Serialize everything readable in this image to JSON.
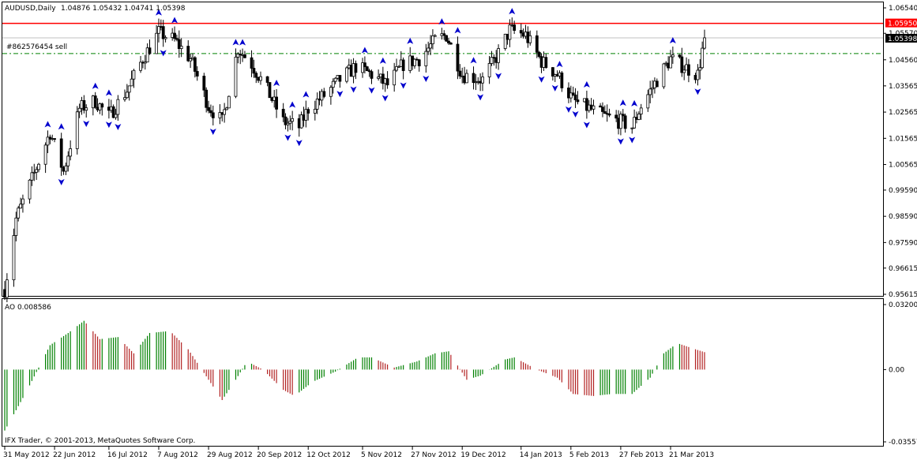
{
  "main_chart": {
    "symbol_title": "AUDUSD,Daily",
    "ohlc_text": "1.04876 1.05432 1.04741 1.05398",
    "order_label": "#862576454 sell",
    "price_axis_ticks": [
      "1.06540",
      "1.05570",
      "1.04560",
      "1.03565",
      "1.02565",
      "1.01565",
      "1.00565",
      "0.99590",
      "0.98590",
      "0.97590",
      "0.96615",
      "0.95615"
    ],
    "resistance_level": "1.05950",
    "current_price": "1.05398",
    "order_level": "1.04800",
    "colors": {
      "resistance": "#ff0000",
      "order_line": "#008000",
      "fractal": "#0000cd",
      "candle": "#000000",
      "price_tag_bg": "#000000",
      "resistance_tag_bg": "#ff0000"
    }
  },
  "oscillator": {
    "title": "AO 0.008586",
    "axis_ticks": [
      "0.032005",
      "0.00",
      "-0.035576"
    ],
    "colors": {
      "up": "#008000",
      "down": "#b22222"
    }
  },
  "date_axis": [
    "31 May 2012",
    "22 Jun 2012",
    "16 Jul 2012",
    "7 Aug 2012",
    "29 Aug 2012",
    "20 Sep 2012",
    "12 Oct 2012",
    "5 Nov 2012",
    "27 Nov 2012",
    "19 Dec 2012",
    "14 Jan 2013",
    "5 Feb 2013",
    "27 Feb 2013",
    "21 Mar 2013"
  ],
  "copyright": "IFX Trader, © 2001-2013, MetaQuotes Software Corp.",
  "chart_data": [
    {
      "type": "candlestick",
      "title": "AUDUSD,Daily",
      "x_start": "31 May 2012",
      "x_end": "5 Apr 2013",
      "ylim": [
        0.95615,
        1.0654
      ],
      "horizontal_lines": [
        1.0595,
        1.048
      ],
      "last_close": 1.05398,
      "close_path": [
        {
          "x": "31 May 2012",
          "y": 0.958
        },
        {
          "x": "5 Jun 2012",
          "y": 0.985
        },
        {
          "x": "12 Jun 2012",
          "y": 1.0
        },
        {
          "x": "20 Jun 2012",
          "y": 1.018
        },
        {
          "x": "26 Jun 2012",
          "y": 1.003
        },
        {
          "x": "3 Jul 2012",
          "y": 1.027
        },
        {
          "x": "10 Jul 2012",
          "y": 1.03
        },
        {
          "x": "16 Jul 2012",
          "y": 1.024
        },
        {
          "x": "24 Jul 2012",
          "y": 1.034
        },
        {
          "x": "31 Jul 2012",
          "y": 1.046
        },
        {
          "x": "7 Aug 2012",
          "y": 1.056
        },
        {
          "x": "14 Aug 2012",
          "y": 1.053
        },
        {
          "x": "21 Aug 2012",
          "y": 1.046
        },
        {
          "x": "29 Aug 2012",
          "y": 1.028
        },
        {
          "x": "4 Sep 2012",
          "y": 1.022
        },
        {
          "x": "11 Sep 2012",
          "y": 1.05
        },
        {
          "x": "17 Sep 2012",
          "y": 1.044
        },
        {
          "x": "24 Sep 2012",
          "y": 1.034
        },
        {
          "x": "1 Oct 2012",
          "y": 1.022
        },
        {
          "x": "8 Oct 2012",
          "y": 1.02
        },
        {
          "x": "12 Oct 2012",
          "y": 1.027
        },
        {
          "x": "19 Oct 2012",
          "y": 1.032
        },
        {
          "x": "26 Oct 2012",
          "y": 1.038
        },
        {
          "x": "2 Nov 2012",
          "y": 1.043
        },
        {
          "x": "9 Nov 2012",
          "y": 1.04
        },
        {
          "x": "16 Nov 2012",
          "y": 1.036
        },
        {
          "x": "23 Nov 2012",
          "y": 1.044
        },
        {
          "x": "30 Nov 2012",
          "y": 1.046
        },
        {
          "x": "7 Dec 2012",
          "y": 1.053
        },
        {
          "x": "12 Dec 2012",
          "y": 1.055
        },
        {
          "x": "19 Dec 2012",
          "y": 1.04
        },
        {
          "x": "28 Dec 2012",
          "y": 1.038
        },
        {
          "x": "4 Jan 2013",
          "y": 1.048
        },
        {
          "x": "9 Jan 2013",
          "y": 1.057
        },
        {
          "x": "16 Jan 2013",
          "y": 1.055
        },
        {
          "x": "23 Jan 2013",
          "y": 1.045
        },
        {
          "x": "30 Jan 2013",
          "y": 1.04
        },
        {
          "x": "6 Feb 2013",
          "y": 1.03
        },
        {
          "x": "13 Feb 2013",
          "y": 1.027
        },
        {
          "x": "20 Feb 2013",
          "y": 1.024
        },
        {
          "x": "27 Feb 2013",
          "y": 1.022
        },
        {
          "x": "4 Mar 2013",
          "y": 1.02
        },
        {
          "x": "8 Mar 2013",
          "y": 1.028
        },
        {
          "x": "15 Mar 2013",
          "y": 1.038
        },
        {
          "x": "21 Mar 2013",
          "y": 1.046
        },
        {
          "x": "27 Mar 2013",
          "y": 1.043
        },
        {
          "x": "2 Apr 2013",
          "y": 1.04
        },
        {
          "x": "5 Apr 2013",
          "y": 1.05398
        }
      ]
    },
    {
      "type": "bar",
      "title": "AO 0.008586",
      "ylim": [
        -0.035576,
        0.032005
      ],
      "last_value": 0.008586,
      "profile": [
        {
          "x": "31 May 2012",
          "y": -0.03
        },
        {
          "x": "10 Jun 2012",
          "y": -0.01
        },
        {
          "x": "20 Jun 2012",
          "y": 0.012
        },
        {
          "x": "28 Jun 2012",
          "y": 0.018
        },
        {
          "x": "5 Jul 2012",
          "y": 0.024
        },
        {
          "x": "12 Jul 2012",
          "y": 0.015
        },
        {
          "x": "20 Jul 2012",
          "y": 0.016
        },
        {
          "x": "27 Jul 2012",
          "y": 0.008
        },
        {
          "x": "3 Aug 2012",
          "y": 0.018
        },
        {
          "x": "12 Aug 2012",
          "y": 0.019
        },
        {
          "x": "20 Aug 2012",
          "y": 0.01
        },
        {
          "x": "29 Aug 2012",
          "y": -0.005
        },
        {
          "x": "4 Sep 2012",
          "y": -0.015
        },
        {
          "x": "10 Sep 2012",
          "y": -0.005
        },
        {
          "x": "15 Sep 2012",
          "y": 0.004
        },
        {
          "x": "22 Sep 2012",
          "y": 0.0
        },
        {
          "x": "1 Oct 2012",
          "y": -0.01
        },
        {
          "x": "6 Oct 2012",
          "y": -0.013
        },
        {
          "x": "14 Oct 2012",
          "y": -0.006
        },
        {
          "x": "24 Oct 2012",
          "y": -0.001
        },
        {
          "x": "3 Nov 2012",
          "y": 0.006
        },
        {
          "x": "9 Nov 2012",
          "y": 0.006
        },
        {
          "x": "19 Nov 2012",
          "y": 0.001
        },
        {
          "x": "29 Nov 2012",
          "y": 0.004
        },
        {
          "x": "7 Dec 2012",
          "y": 0.008
        },
        {
          "x": "13 Dec 2012",
          "y": 0.009
        },
        {
          "x": "21 Dec 2012",
          "y": -0.005
        },
        {
          "x": "27 Dec 2012",
          "y": -0.003
        },
        {
          "x": "7 Jan 2013",
          "y": 0.005
        },
        {
          "x": "11 Jan 2013",
          "y": 0.006
        },
        {
          "x": "21 Jan 2013",
          "y": 0.0
        },
        {
          "x": "30 Jan 2013",
          "y": -0.004
        },
        {
          "x": "6 Feb 2013",
          "y": -0.012
        },
        {
          "x": "15 Feb 2013",
          "y": -0.013
        },
        {
          "x": "23 Feb 2013",
          "y": -0.012
        },
        {
          "x": "4 Mar 2013",
          "y": -0.012
        },
        {
          "x": "12 Mar 2013",
          "y": -0.004
        },
        {
          "x": "18 Mar 2013",
          "y": 0.008
        },
        {
          "x": "24 Mar 2013",
          "y": 0.013
        },
        {
          "x": "1 Apr 2013",
          "y": 0.01
        },
        {
          "x": "5 Apr 2013",
          "y": 0.008586
        }
      ]
    }
  ]
}
